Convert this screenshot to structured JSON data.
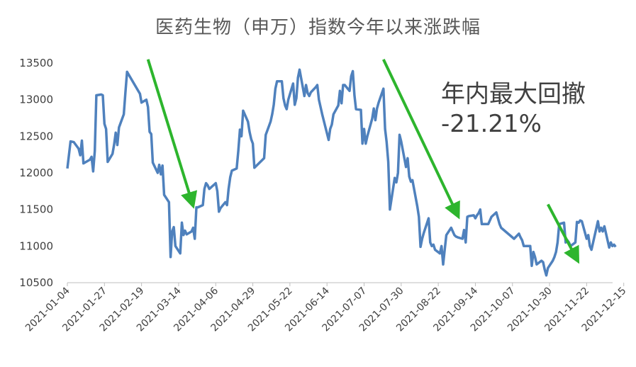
{
  "chart_data": {
    "type": "line",
    "title": "医药生物（申万）指数今年以来涨跌幅",
    "xlabel": "",
    "ylabel": "",
    "ylim": [
      10500,
      13500
    ],
    "yticks": [
      10500,
      11000,
      11500,
      12000,
      12500,
      13000,
      13500
    ],
    "xticks": [
      "2021-01-04",
      "2021-01-27",
      "2021-02-19",
      "2021-03-14",
      "2021-04-06",
      "2021-04-29",
      "2021-05-22",
      "2021-06-14",
      "2021-07-07",
      "2021-07-30",
      "2021-08-22",
      "2021-09-14",
      "2021-10-07",
      "2021-10-30",
      "2021-11-22",
      "2021-12-15"
    ],
    "grid": false,
    "legend": "none",
    "line_color": "#4F81BD",
    "arrow_color": "#2DB52D",
    "annotation_lines": [
      "年内最大回撤",
      "-21.21%"
    ],
    "series": [
      {
        "values": [
          [
            "2021-01-04",
            12060
          ],
          [
            "2021-01-06",
            12430
          ],
          [
            "2021-01-08",
            12420
          ],
          [
            "2021-01-11",
            12330
          ],
          [
            "2021-01-12",
            12240
          ],
          [
            "2021-01-13",
            12440
          ],
          [
            "2021-01-14",
            12130
          ],
          [
            "2021-01-18",
            12180
          ],
          [
            "2021-01-19",
            12220
          ],
          [
            "2021-01-20",
            12020
          ],
          [
            "2021-01-21",
            12300
          ],
          [
            "2021-01-22",
            13060
          ],
          [
            "2021-01-25",
            13070
          ],
          [
            "2021-01-26",
            13060
          ],
          [
            "2021-01-27",
            12670
          ],
          [
            "2021-01-28",
            12600
          ],
          [
            "2021-01-29",
            12150
          ],
          [
            "2021-02-01",
            12260
          ],
          [
            "2021-02-02",
            12390
          ],
          [
            "2021-02-03",
            12550
          ],
          [
            "2021-02-04",
            12380
          ],
          [
            "2021-02-05",
            12620
          ],
          [
            "2021-02-08",
            12800
          ],
          [
            "2021-02-09",
            13100
          ],
          [
            "2021-02-10",
            13380
          ],
          [
            "2021-02-18",
            13080
          ],
          [
            "2021-02-19",
            12960
          ],
          [
            "2021-02-22",
            13000
          ],
          [
            "2021-02-23",
            12900
          ],
          [
            "2021-02-24",
            12560
          ],
          [
            "2021-02-25",
            12530
          ],
          [
            "2021-02-26",
            12140
          ],
          [
            "2021-03-01",
            12000
          ],
          [
            "2021-03-02",
            12110
          ],
          [
            "2021-03-03",
            11980
          ],
          [
            "2021-03-04",
            12100
          ],
          [
            "2021-03-05",
            11700
          ],
          [
            "2021-03-08",
            11600
          ],
          [
            "2021-03-09",
            10850
          ],
          [
            "2021-03-10",
            11200
          ],
          [
            "2021-03-11",
            11260
          ],
          [
            "2021-03-12",
            11000
          ],
          [
            "2021-03-15",
            10900
          ],
          [
            "2021-03-16",
            11320
          ],
          [
            "2021-03-17",
            11150
          ],
          [
            "2021-03-18",
            11210
          ],
          [
            "2021-03-19",
            11160
          ],
          [
            "2021-03-22",
            11200
          ],
          [
            "2021-03-23",
            11250
          ],
          [
            "2021-03-24",
            11100
          ],
          [
            "2021-03-25",
            11530
          ],
          [
            "2021-03-26",
            11530
          ],
          [
            "2021-03-29",
            11560
          ],
          [
            "2021-03-30",
            11780
          ],
          [
            "2021-03-31",
            11860
          ],
          [
            "2021-04-01",
            11830
          ],
          [
            "2021-04-02",
            11780
          ],
          [
            "2021-04-06",
            11860
          ],
          [
            "2021-04-07",
            11750
          ],
          [
            "2021-04-08",
            11470
          ],
          [
            "2021-04-09",
            11520
          ],
          [
            "2021-04-12",
            11600
          ],
          [
            "2021-04-13",
            11560
          ],
          [
            "2021-04-14",
            11780
          ],
          [
            "2021-04-15",
            11940
          ],
          [
            "2021-04-16",
            12030
          ],
          [
            "2021-04-19",
            12060
          ],
          [
            "2021-04-20",
            12300
          ],
          [
            "2021-04-21",
            12590
          ],
          [
            "2021-04-22",
            12500
          ],
          [
            "2021-04-23",
            12850
          ],
          [
            "2021-04-26",
            12700
          ],
          [
            "2021-04-27",
            12560
          ],
          [
            "2021-04-28",
            12460
          ],
          [
            "2021-04-29",
            12400
          ],
          [
            "2021-04-30",
            12070
          ],
          [
            "2021-05-06",
            12200
          ],
          [
            "2021-05-07",
            12520
          ],
          [
            "2021-05-10",
            12700
          ],
          [
            "2021-05-11",
            12800
          ],
          [
            "2021-05-12",
            12930
          ],
          [
            "2021-05-13",
            13150
          ],
          [
            "2021-05-14",
            13250
          ],
          [
            "2021-05-17",
            13250
          ],
          [
            "2021-05-18",
            13020
          ],
          [
            "2021-05-19",
            12920
          ],
          [
            "2021-05-20",
            12870
          ],
          [
            "2021-05-21",
            13000
          ],
          [
            "2021-05-24",
            13220
          ],
          [
            "2021-05-25",
            12930
          ],
          [
            "2021-05-26",
            13020
          ],
          [
            "2021-05-27",
            13300
          ],
          [
            "2021-05-28",
            13410
          ],
          [
            "2021-05-31",
            13050
          ],
          [
            "2021-06-01",
            13200
          ],
          [
            "2021-06-02",
            13090
          ],
          [
            "2021-06-03",
            13050
          ],
          [
            "2021-06-04",
            13100
          ],
          [
            "2021-06-07",
            13170
          ],
          [
            "2021-06-08",
            13200
          ],
          [
            "2021-06-09",
            13000
          ],
          [
            "2021-06-10",
            12900
          ],
          [
            "2021-06-11",
            12800
          ],
          [
            "2021-06-15",
            12450
          ],
          [
            "2021-06-16",
            12600
          ],
          [
            "2021-06-17",
            12660
          ],
          [
            "2021-06-18",
            12800
          ],
          [
            "2021-06-21",
            12920
          ],
          [
            "2021-06-22",
            13120
          ],
          [
            "2021-06-23",
            12950
          ],
          [
            "2021-06-24",
            13200
          ],
          [
            "2021-06-25",
            13200
          ],
          [
            "2021-06-28",
            13120
          ],
          [
            "2021-06-29",
            13320
          ],
          [
            "2021-06-30",
            13390
          ],
          [
            "2021-07-01",
            13060
          ],
          [
            "2021-07-02",
            12870
          ],
          [
            "2021-07-05",
            12860
          ],
          [
            "2021-07-06",
            12400
          ],
          [
            "2021-07-07",
            12600
          ],
          [
            "2021-07-08",
            12400
          ],
          [
            "2021-07-09",
            12500
          ],
          [
            "2021-07-12",
            12740
          ],
          [
            "2021-07-13",
            12880
          ],
          [
            "2021-07-14",
            12720
          ],
          [
            "2021-07-15",
            12880
          ],
          [
            "2021-07-16",
            12960
          ],
          [
            "2021-07-19",
            13150
          ],
          [
            "2021-07-20",
            12600
          ],
          [
            "2021-07-21",
            12420
          ],
          [
            "2021-07-22",
            12150
          ],
          [
            "2021-07-23",
            11500
          ],
          [
            "2021-07-26",
            11930
          ],
          [
            "2021-07-27",
            11870
          ],
          [
            "2021-07-28",
            12000
          ],
          [
            "2021-07-29",
            12520
          ],
          [
            "2021-07-30",
            12430
          ],
          [
            "2021-08-02",
            12080
          ],
          [
            "2021-08-03",
            12200
          ],
          [
            "2021-08-04",
            11950
          ],
          [
            "2021-08-05",
            11880
          ],
          [
            "2021-08-06",
            11900
          ],
          [
            "2021-08-09",
            11540
          ],
          [
            "2021-08-10",
            11400
          ],
          [
            "2021-08-11",
            10990
          ],
          [
            "2021-08-12",
            11100
          ],
          [
            "2021-08-13",
            11180
          ],
          [
            "2021-08-16",
            11380
          ],
          [
            "2021-08-17",
            11050
          ],
          [
            "2021-08-18",
            11000
          ],
          [
            "2021-08-19",
            11020
          ],
          [
            "2021-08-20",
            10950
          ],
          [
            "2021-08-23",
            10900
          ],
          [
            "2021-08-24",
            11000
          ],
          [
            "2021-08-25",
            10750
          ],
          [
            "2021-08-26",
            10950
          ],
          [
            "2021-08-27",
            11150
          ],
          [
            "2021-08-30",
            11250
          ],
          [
            "2021-08-31",
            11200
          ],
          [
            "2021-09-01",
            11150
          ],
          [
            "2021-09-02",
            11130
          ],
          [
            "2021-09-03",
            11120
          ],
          [
            "2021-09-06",
            11100
          ],
          [
            "2021-09-07",
            11220
          ],
          [
            "2021-09-08",
            11050
          ],
          [
            "2021-09-09",
            11400
          ],
          [
            "2021-09-10",
            11410
          ],
          [
            "2021-09-13",
            11420
          ],
          [
            "2021-09-14",
            11380
          ],
          [
            "2021-09-15",
            11420
          ],
          [
            "2021-09-16",
            11450
          ],
          [
            "2021-09-17",
            11500
          ],
          [
            "2021-09-18",
            11300
          ],
          [
            "2021-09-22",
            11300
          ],
          [
            "2021-09-23",
            11350
          ],
          [
            "2021-09-24",
            11400
          ],
          [
            "2021-09-27",
            11460
          ],
          [
            "2021-09-28",
            11380
          ],
          [
            "2021-09-29",
            11300
          ],
          [
            "2021-09-30",
            11250
          ],
          [
            "2021-10-08",
            11100
          ],
          [
            "2021-10-11",
            11170
          ],
          [
            "2021-10-12",
            11120
          ],
          [
            "2021-10-13",
            11080
          ],
          [
            "2021-10-14",
            11000
          ],
          [
            "2021-10-15",
            11000
          ],
          [
            "2021-10-18",
            11000
          ],
          [
            "2021-10-19",
            10730
          ],
          [
            "2021-10-20",
            10920
          ],
          [
            "2021-10-21",
            10850
          ],
          [
            "2021-10-22",
            10750
          ],
          [
            "2021-10-25",
            10800
          ],
          [
            "2021-10-26",
            10780
          ],
          [
            "2021-10-27",
            10680
          ],
          [
            "2021-10-28",
            10600
          ],
          [
            "2021-10-29",
            10700
          ],
          [
            "2021-11-01",
            10800
          ],
          [
            "2021-11-02",
            10850
          ],
          [
            "2021-11-03",
            10920
          ],
          [
            "2021-11-04",
            11050
          ],
          [
            "2021-11-05",
            11300
          ],
          [
            "2021-11-08",
            11320
          ],
          [
            "2021-11-09",
            11050
          ],
          [
            "2021-11-10",
            11080
          ],
          [
            "2021-11-11",
            11050
          ],
          [
            "2021-11-12",
            11000
          ],
          [
            "2021-11-15",
            11050
          ],
          [
            "2021-11-16",
            11330
          ],
          [
            "2021-11-17",
            11320
          ],
          [
            "2021-11-18",
            11350
          ],
          [
            "2021-11-19",
            11340
          ],
          [
            "2021-11-22",
            11100
          ],
          [
            "2021-11-23",
            11150
          ],
          [
            "2021-11-24",
            11000
          ],
          [
            "2021-11-25",
            10950
          ],
          [
            "2021-11-26",
            11050
          ],
          [
            "2021-11-29",
            11340
          ],
          [
            "2021-11-30",
            11200
          ],
          [
            "2021-12-01",
            11250
          ],
          [
            "2021-12-02",
            11200
          ],
          [
            "2021-12-03",
            11270
          ],
          [
            "2021-12-06",
            10980
          ],
          [
            "2021-12-07",
            11050
          ],
          [
            "2021-12-08",
            11000
          ],
          [
            "2021-12-09",
            11020
          ],
          [
            "2021-12-10",
            10990
          ]
        ]
      }
    ],
    "arrows": [
      {
        "from": [
          "2021-02-23",
          13550
        ],
        "to": [
          "2021-03-22",
          11620
        ]
      },
      {
        "from": [
          "2021-07-19",
          13550
        ],
        "to": [
          "2021-09-02",
          11470
        ]
      },
      {
        "from": [
          "2021-10-29",
          11570
        ],
        "to": [
          "2021-11-15",
          10860
        ]
      }
    ]
  }
}
